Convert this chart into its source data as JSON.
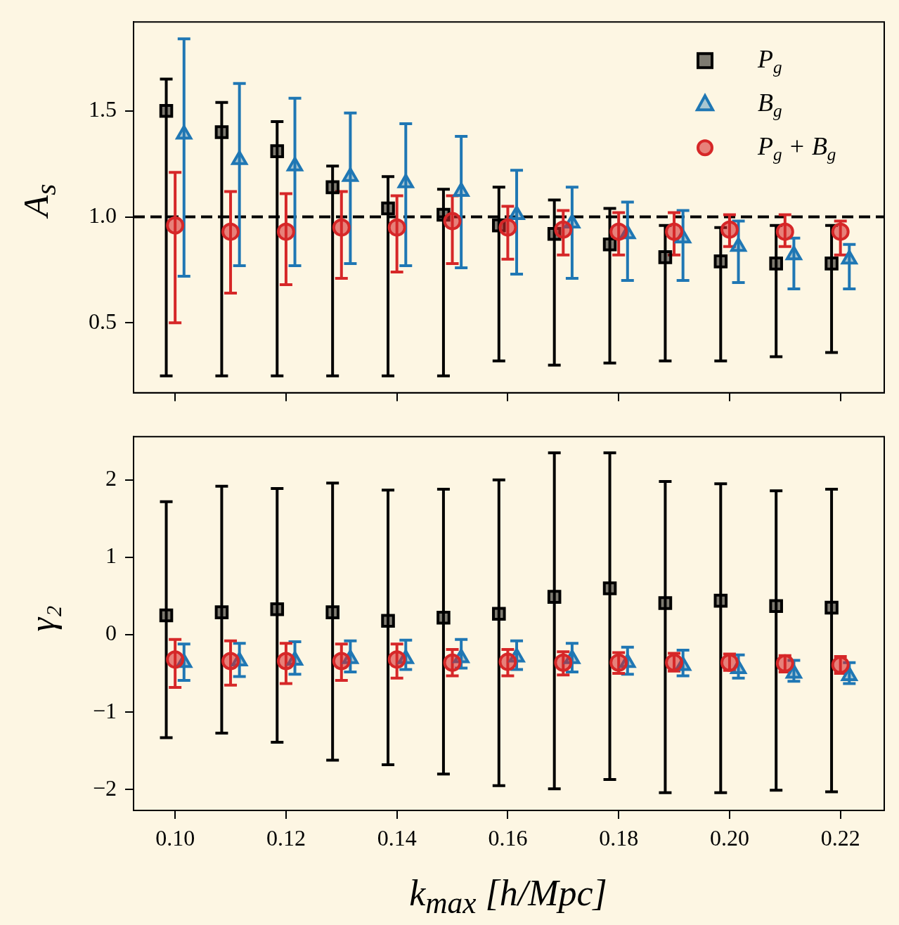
{
  "chart_data": [
    {
      "type": "scatter",
      "ylabel": "A$_{s}$",
      "xlim": [
        0.0925,
        0.2279
      ],
      "ylim": [
        0.17,
        1.92
      ],
      "grid": false,
      "legend": "top right",
      "tick_labels": "y",
      "xticks": [
        0.1,
        0.12,
        0.14,
        0.16,
        0.18,
        0.2,
        0.22
      ],
      "yticks": [
        0.5,
        {
          "value": 1,
          "label": "1.0"
        },
        1.5
      ],
      "ref_lines": [
        {
          "axis": "y",
          "value": 1,
          "color": "#000000",
          "line_style": "dashed"
        }
      ],
      "series": [
        {
          "name": "P$_{g}$",
          "color": "#000000",
          "marker": "square",
          "x": [
            0.0984,
            0.1084,
            0.1184,
            0.1284,
            0.1384,
            0.1484,
            0.1584,
            0.1684,
            0.1784,
            0.1884,
            0.1984,
            0.2084,
            0.2184
          ],
          "values": [
            1.5,
            1.4,
            1.31,
            1.14,
            1.04,
            1.01,
            0.96,
            0.92,
            0.87,
            0.81,
            0.79,
            0.78,
            0.78
          ],
          "errors": [
            [
              0.25,
              1.65
            ],
            [
              0.25,
              1.54
            ],
            [
              0.25,
              1.45
            ],
            [
              0.25,
              1.24
            ],
            [
              0.25,
              1.19
            ],
            [
              0.25,
              1.13
            ],
            [
              0.32,
              1.14
            ],
            [
              0.3,
              1.08
            ],
            [
              0.31,
              1.04
            ],
            [
              0.32,
              0.96
            ],
            [
              0.32,
              0.95
            ],
            [
              0.34,
              0.96
            ],
            [
              0.36,
              0.96
            ]
          ]
        },
        {
          "name": "B$_{g}$",
          "color": "#1f77b4",
          "marker": "triangle",
          "x": [
            0.1016,
            0.1116,
            0.1216,
            0.1316,
            0.1416,
            0.1516,
            0.1616,
            0.1716,
            0.1816,
            0.1916,
            0.2016,
            0.2116,
            0.2216
          ],
          "values": [
            1.39,
            1.27,
            1.24,
            1.19,
            1.16,
            1.12,
            1.01,
            0.97,
            0.92,
            0.9,
            0.86,
            0.82,
            0.8
          ],
          "errors": [
            [
              0.72,
              1.84
            ],
            [
              0.77,
              1.63
            ],
            [
              0.77,
              1.56
            ],
            [
              0.78,
              1.49
            ],
            [
              0.77,
              1.44
            ],
            [
              0.76,
              1.38
            ],
            [
              0.73,
              1.22
            ],
            [
              0.71,
              1.14
            ],
            [
              0.7,
              1.07
            ],
            [
              0.7,
              1.03
            ],
            [
              0.69,
              0.98
            ],
            [
              0.66,
              0.9
            ],
            [
              0.66,
              0.87
            ]
          ]
        },
        {
          "name": "P$_{g}$ + B$_{g}$",
          "color": "#d62728",
          "marker": "circle",
          "x": [
            0.1,
            0.11,
            0.12,
            0.13,
            0.14,
            0.15,
            0.16,
            0.17,
            0.18,
            0.19,
            0.2,
            0.21,
            0.22
          ],
          "values": [
            0.96,
            0.93,
            0.93,
            0.95,
            0.95,
            0.98,
            0.95,
            0.94,
            0.93,
            0.93,
            0.94,
            0.93,
            0.93
          ],
          "errors": [
            [
              0.5,
              1.21
            ],
            [
              0.64,
              1.12
            ],
            [
              0.68,
              1.11
            ],
            [
              0.71,
              1.12
            ],
            [
              0.74,
              1.1
            ],
            [
              0.78,
              1.1
            ],
            [
              0.8,
              1.05
            ],
            [
              0.82,
              1.03
            ],
            [
              0.82,
              1.02
            ],
            [
              0.82,
              1.02
            ],
            [
              0.86,
              1.01
            ],
            [
              0.86,
              1.01
            ],
            [
              0.82,
              0.98
            ]
          ]
        }
      ]
    },
    {
      "type": "scatter",
      "ylabel": "γ₂",
      "xlabel": "k$_{max}$ [h/Mpc]",
      "xlim": [
        0.0925,
        0.2279
      ],
      "ylim": [
        -2.27,
        2.56
      ],
      "grid": false,
      "xticks": [
        {
          "value": 0.1,
          "label": "0.10"
        },
        {
          "value": 0.12,
          "label": "0.12"
        },
        {
          "value": 0.14,
          "label": "0.14"
        },
        {
          "value": 0.16,
          "label": "0.16"
        },
        {
          "value": 0.18,
          "label": "0.18"
        },
        {
          "value": 0.2,
          "label": "0.20"
        },
        {
          "value": 0.22,
          "label": "0.22"
        }
      ],
      "yticks": [
        {
          "value": -2,
          "label": "−2"
        },
        {
          "value": -1,
          "label": "−1"
        },
        0,
        1,
        2
      ],
      "series": [
        {
          "color": "#000000",
          "marker": "square",
          "x": [
            0.0984,
            0.1084,
            0.1184,
            0.1284,
            0.1384,
            0.1484,
            0.1584,
            0.1684,
            0.1784,
            0.1884,
            0.1984,
            0.2084,
            0.2184
          ],
          "values": [
            0.25,
            0.29,
            0.33,
            0.29,
            0.18,
            0.22,
            0.27,
            0.49,
            0.6,
            0.41,
            0.44,
            0.37,
            0.35
          ],
          "errors": [
            [
              -1.33,
              1.72
            ],
            [
              -1.27,
              1.92
            ],
            [
              -1.39,
              1.89
            ],
            [
              -1.62,
              1.96
            ],
            [
              -1.68,
              1.87
            ],
            [
              -1.8,
              1.88
            ],
            [
              -1.95,
              2.0
            ],
            [
              -1.99,
              2.35
            ],
            [
              -1.87,
              2.35
            ],
            [
              -2.04,
              1.98
            ],
            [
              -2.04,
              1.95
            ],
            [
              -2.01,
              1.86
            ],
            [
              -2.03,
              1.88
            ]
          ]
        },
        {
          "color": "#1f77b4",
          "marker": "triangle",
          "x": [
            0.1016,
            0.1116,
            0.1216,
            0.1316,
            0.1416,
            0.1516,
            0.1616,
            0.1716,
            0.1816,
            0.1916,
            0.2016,
            0.2116,
            0.2216
          ],
          "values": [
            -0.36,
            -0.34,
            -0.33,
            -0.31,
            -0.31,
            -0.3,
            -0.29,
            -0.31,
            -0.36,
            -0.4,
            -0.44,
            -0.5,
            -0.53
          ],
          "errors": [
            [
              -0.59,
              -0.12
            ],
            [
              -0.54,
              -0.11
            ],
            [
              -0.51,
              -0.09
            ],
            [
              -0.48,
              -0.08
            ],
            [
              -0.45,
              -0.07
            ],
            [
              -0.43,
              -0.06
            ],
            [
              -0.45,
              -0.08
            ],
            [
              -0.48,
              -0.11
            ],
            [
              -0.51,
              -0.16
            ],
            [
              -0.53,
              -0.2
            ],
            [
              -0.56,
              -0.26
            ],
            [
              -0.6,
              -0.33
            ],
            [
              -0.63,
              -0.36
            ]
          ]
        },
        {
          "color": "#d62728",
          "marker": "circle",
          "x": [
            0.1,
            0.11,
            0.12,
            0.13,
            0.14,
            0.15,
            0.16,
            0.17,
            0.18,
            0.19,
            0.2,
            0.21,
            0.22
          ],
          "values": [
            -0.32,
            -0.34,
            -0.34,
            -0.34,
            -0.32,
            -0.36,
            -0.35,
            -0.36,
            -0.36,
            -0.36,
            -0.36,
            -0.37,
            -0.39
          ],
          "errors": [
            [
              -0.68,
              -0.06
            ],
            [
              -0.65,
              -0.08
            ],
            [
              -0.63,
              -0.11
            ],
            [
              -0.59,
              -0.12
            ],
            [
              -0.56,
              -0.12
            ],
            [
              -0.53,
              -0.19
            ],
            [
              -0.53,
              -0.19
            ],
            [
              -0.52,
              -0.22
            ],
            [
              -0.5,
              -0.23
            ],
            [
              -0.47,
              -0.24
            ],
            [
              -0.46,
              -0.25
            ],
            [
              -0.48,
              -0.27
            ],
            [
              -0.5,
              -0.28
            ]
          ]
        }
      ]
    }
  ]
}
